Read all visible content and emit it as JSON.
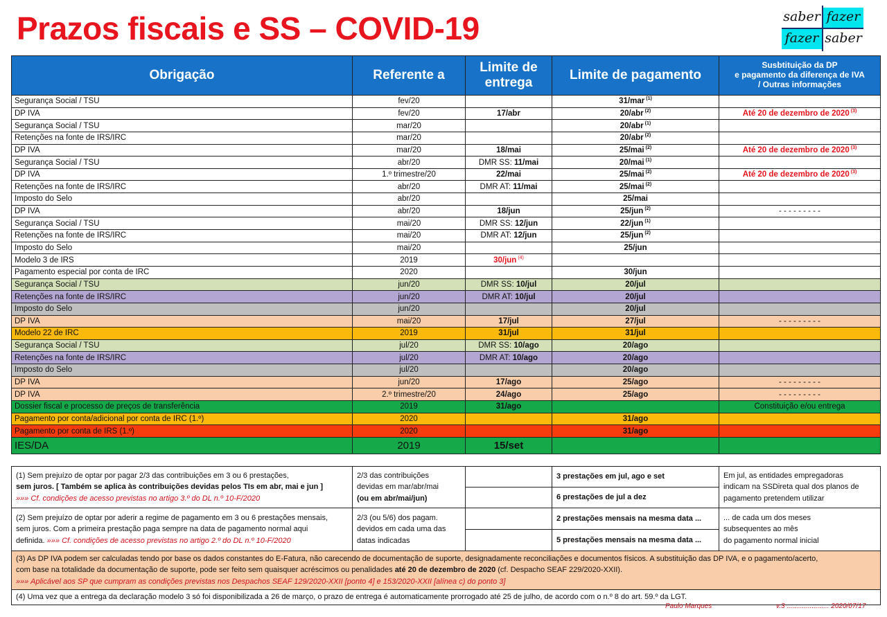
{
  "title": "Prazos fiscais e SS – COVID-19",
  "logo": {
    "q1": "saber",
    "q2": "fazer",
    "q3": "fazer",
    "q4": "saber"
  },
  "header": {
    "obrigacao": "Obrigação",
    "referente": "Referente a",
    "limite_entrega": "Limite de entrega",
    "limite_pagamento": "Limite de pagamento",
    "info_line1": "Susbtituição da DP",
    "info_line2": "e pagamento da diferença de IVA",
    "info_line3": "/ Outras informações"
  },
  "rows": [
    {
      "ob": "Segurança Social / TSU",
      "ref": "fev/20",
      "ent": "",
      "pag": "31/mar",
      "pag_sup": "(1)",
      "info": ""
    },
    {
      "ob": "DP IVA",
      "ref": "fev/20",
      "ent": "17/abr",
      "pag": "20/abr",
      "pag_sup": "(2)",
      "info": "Até 20 de dezembro de 2020",
      "info_sup": "(3)"
    },
    {
      "ob": "Segurança Social / TSU",
      "ref": "mar/20",
      "ent": "",
      "pag": "20/abr",
      "pag_sup": "(1)",
      "info": ""
    },
    {
      "ob": "Retenções na fonte de IRS/IRC",
      "ref": "mar/20",
      "ent": "",
      "pag": "20/abr",
      "pag_sup": "(2)",
      "info": ""
    },
    {
      "ob": "DP IVA",
      "ref": "mar/20",
      "ent": "18/mai",
      "pag": "25/mai",
      "pag_sup": "(2)",
      "info": "Até 20 de dezembro de 2020",
      "info_sup": "(3)"
    },
    {
      "ob": "Segurança Social / TSU",
      "ref": "abr/20",
      "ent_pre": "DMR SS: ",
      "ent": "11/mai",
      "pag": "20/mai",
      "pag_sup": "(1)",
      "info": ""
    },
    {
      "ob": "DP IVA",
      "ref": "1.º trimestre/20",
      "ent": "22/mai",
      "pag": "25/mai",
      "pag_sup": "(2)",
      "info": "Até 20 de dezembro de 2020",
      "info_sup": "(3)"
    },
    {
      "ob": "Retenções na fonte de IRS/IRC",
      "ref": "abr/20",
      "ent_pre": "DMR AT: ",
      "ent": "11/mai",
      "pag": "25/mai",
      "pag_sup": "(2)",
      "info": ""
    },
    {
      "ob": "Imposto do Selo",
      "ref": "abr/20",
      "ent": "",
      "pag": "25/mai",
      "info": ""
    },
    {
      "ob": "DP IVA",
      "ref": "abr/20",
      "ent": "18/jun",
      "pag": "25/jun",
      "pag_sup": "(2)",
      "info": "- - - - - - - - -"
    },
    {
      "ob": "Segurança Social / TSU",
      "ref": "mai/20",
      "ent_pre": "DMR SS: ",
      "ent": "12/jun",
      "pag": "22/jun",
      "pag_sup": "(1)",
      "info": ""
    },
    {
      "ob": "Retenções na fonte de IRS/IRC",
      "ref": "mai/20",
      "ent_pre": "DMR AT: ",
      "ent": "12/jun",
      "pag": "25/jun",
      "pag_sup": "(2)",
      "info": ""
    },
    {
      "ob": "Imposto do Selo",
      "ref": "mai/20",
      "ent": "",
      "pag": "25/jun",
      "info": ""
    },
    {
      "ob": "Modelo 3 de IRS",
      "ref": "2019",
      "ent": "30/jun",
      "ent_sup": "(4)",
      "ent_red": true,
      "pag": "",
      "info": ""
    },
    {
      "ob": "Pagamento especial por conta de IRC",
      "ref": "2020",
      "ent": "",
      "pag": "30/jun",
      "info": ""
    },
    {
      "cls": "r-ss",
      "ob": "Segurança Social / TSU",
      "ref": "jun/20",
      "ent_pre": "DMR SS: ",
      "ent": "10/jul",
      "pag": "20/jul",
      "info": ""
    },
    {
      "cls": "r-ret",
      "ob": "Retenções na fonte de IRS/IRC",
      "ref": "jun/20",
      "ent_pre": "DMR AT: ",
      "ent": "10/jul",
      "pag": "20/jul",
      "info": ""
    },
    {
      "cls": "r-selo",
      "ob": "Imposto do Selo",
      "ref": "jun/20",
      "ent": "",
      "pag": "20/jul",
      "info": ""
    },
    {
      "cls": "r-dp",
      "ob": "DP IVA",
      "ref": "mai/20",
      "ent": "17/jul",
      "pag": "27/jul",
      "info": "- - - - - - - - -"
    },
    {
      "cls": "r-orange",
      "ob": "Modelo 22 de IRC",
      "ref": "2019",
      "ent": "31/jul",
      "pag": "31/jul",
      "info": ""
    },
    {
      "cls": "r-ss",
      "ob": "Segurança Social / TSU",
      "ref": "jul/20",
      "ent_pre": "DMR SS: ",
      "ent": "10/ago",
      "pag": "20/ago",
      "info": ""
    },
    {
      "cls": "r-ret",
      "ob": "Retenções na fonte de IRS/IRC",
      "ref": "jul/20",
      "ent_pre": "DMR AT: ",
      "ent": "10/ago",
      "pag": "20/ago",
      "info": ""
    },
    {
      "cls": "r-selo",
      "ob": "Imposto do Selo",
      "ref": "jul/20",
      "ent": "",
      "pag": "20/ago",
      "info": ""
    },
    {
      "cls": "r-dp",
      "ob": "DP IVA",
      "ref": "jun/20",
      "ent": "17/ago",
      "pag": "25/ago",
      "info": "- - - - - - - - -"
    },
    {
      "cls": "r-dp",
      "ob": "DP IVA",
      "ref": "2.º trimestre/20",
      "ent": "24/ago",
      "pag": "25/ago",
      "info": "- - - - - - - - -"
    },
    {
      "cls": "r-green",
      "ob": "Dossier fiscal e processo de preços de transferência",
      "ref": "2019",
      "ent": "31/ago",
      "pag": "",
      "info": "Constituição e/ou entrega"
    },
    {
      "cls": "r-orange",
      "ob": "Pagamento por conta/adicional por conta de IRC (1.º)",
      "ref": "2020",
      "ent": "",
      "pag": "31/ago",
      "info": ""
    },
    {
      "cls": "r-red",
      "ob": "Pagamento por conta de IRS (1.º)",
      "ref": "2020",
      "ent": "",
      "pag": "31/ago",
      "info": ""
    },
    {
      "cls": "r-green r-big",
      "ob": "IES/DA",
      "ref": "2019",
      "ent": "15/set",
      "pag": "",
      "info": ""
    }
  ],
  "notes": {
    "n1_a": "(1) Sem prejuízo de optar por pagar 2/3 das contribuições em 3 ou 6 prestações,",
    "n1_b": "sem juros. [ Também se aplica às contribuições devidas pelos TIs em abr, mai e jun ]",
    "n1_c": "»»»  Cf. condições de acesso previstas no artigo 3.º do DL n.º 10-F/2020",
    "n1_ref_a": "2/3 das contribuições",
    "n1_ref_b": "devidas em mar/abr/mai",
    "n1_ref_c": "(ou em abr/mai/jun)",
    "n1_pag_a": "3 prestações em jul, ago e set",
    "n1_pag_b": "6 prestações de jul a dez",
    "n1_info_a": "Em jul, as entidades empregadoras",
    "n1_info_b": "indicam na SSDireta qual dos planos de",
    "n1_info_c": "pagamento pretendem utilizar",
    "n2_a": "(2) Sem prejuízo de optar por aderir a regime de pagamento em 3 ou 6 prestações mensais,",
    "n2_b": "sem juros. Com a primeira prestação paga sempre na data de pagamento normal aqui",
    "n2_c_pre": "definida.",
    "n2_c": "»»»  Cf. condições de acesso previstas no artigo 2.º do DL n.º 10-F/2020",
    "n2_ref_a": "2/3 (ou 5/6) dos pagam.",
    "n2_ref_b": "devidos em cada uma das",
    "n2_ref_c": "datas indicadas",
    "n2_pag_a": "2 prestações mensais na mesma data ...",
    "n2_pag_b": "5 prestações mensais na mesma data ...",
    "n2_info_a": "... de cada um dos meses",
    "n2_info_b": "subsequentes ao mês",
    "n2_info_c": "do pagamento normal inicial",
    "n3_a": "(3) As DP IVA podem ser calculadas tendo por base os dados constantes do E-Fatura, não carecendo de documentação de suporte, designadamente reconciliações e documentos físicos. A substituição das DP IVA, e o pagamento/acerto,",
    "n3_b_pre": "com base na totalidade da documentação de suporte, pode ser feito sem quaisquer acréscimos ou penalidades",
    "n3_b_bold": "até 20 de dezembro de 2020",
    "n3_b_post": "(cf. Despacho SEAF 229/2020-XXII).",
    "n3_c": "»»»  Aplicável aos SP que cumpram as condições previstas nos Despachos SEAF 129/2020-XXII [ponto 4] e 153/2020-XXII [alínea c) do ponto 3]",
    "n4": "(4) Uma vez que a entrega da declaração modelo 3 só foi disponibilizada a 26 de março, o prazo de entrega é automaticamente prorrogado até 25 de julho, de acordo com o n.º 8 do art. 59.º da LGT."
  },
  "footer": {
    "author": "Paulo Marques",
    "version": "v.3  ......................  2020/07/17"
  }
}
